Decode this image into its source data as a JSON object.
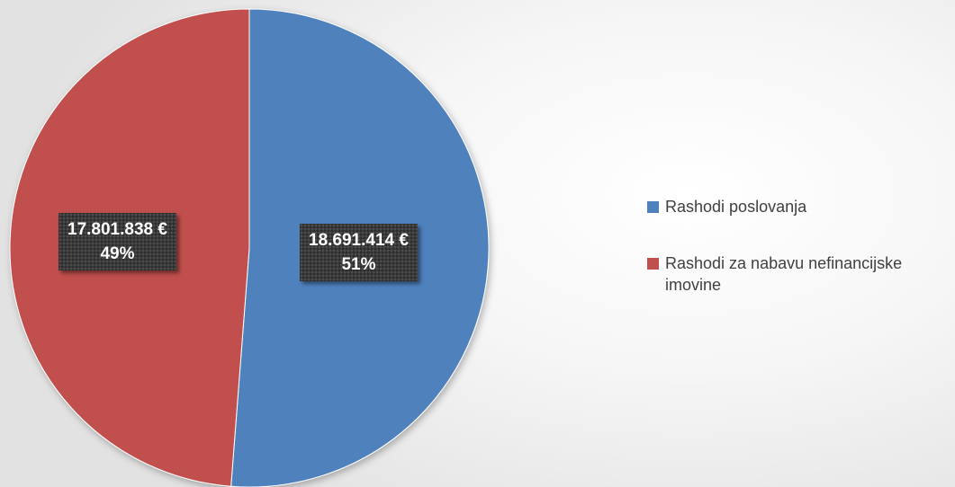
{
  "chart_data": {
    "type": "pie",
    "title": "",
    "slices": [
      {
        "name": "Rashodi poslovanja",
        "value": 18691414,
        "value_label": "18.691.414 €",
        "percent_label": "51%",
        "color": "#4f81bd"
      },
      {
        "name": "Rashodi za nabavu nefinancijske imovine",
        "value": 17801838,
        "value_label": "17.801.838 €",
        "percent_label": "49%",
        "color": "#c0504d"
      }
    ],
    "start_angle_deg": 0,
    "direction": "clockwise",
    "legend_position": "right",
    "data_label_style": "dark callout boxes with value and percent"
  }
}
